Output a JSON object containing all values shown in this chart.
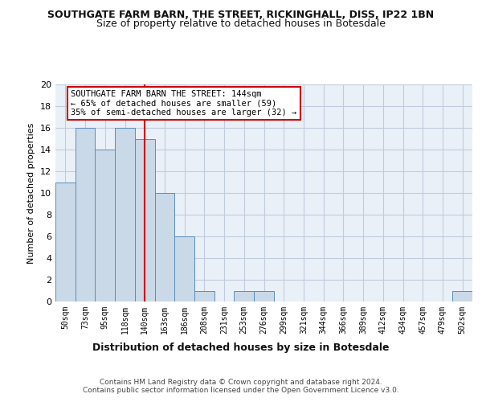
{
  "title": "SOUTHGATE FARM BARN, THE STREET, RICKINGHALL, DISS, IP22 1BN",
  "subtitle": "Size of property relative to detached houses in Botesdale",
  "xlabel": "Distribution of detached houses by size in Botesdale",
  "ylabel": "Number of detached properties",
  "bar_labels": [
    "50sqm",
    "73sqm",
    "95sqm",
    "118sqm",
    "140sqm",
    "163sqm",
    "186sqm",
    "208sqm",
    "231sqm",
    "253sqm",
    "276sqm",
    "299sqm",
    "321sqm",
    "344sqm",
    "366sqm",
    "389sqm",
    "412sqm",
    "434sqm",
    "457sqm",
    "479sqm",
    "502sqm"
  ],
  "bar_values": [
    11,
    16,
    14,
    16,
    15,
    10,
    6,
    1,
    0,
    1,
    1,
    0,
    0,
    0,
    0,
    0,
    0,
    0,
    0,
    0,
    1
  ],
  "bar_color": "#c9d9e8",
  "bar_edge_color": "#5b8db8",
  "ylim": [
    0,
    20
  ],
  "yticks": [
    0,
    2,
    4,
    6,
    8,
    10,
    12,
    14,
    16,
    18,
    20
  ],
  "subject_line_color": "#cc0000",
  "annotation_text": "SOUTHGATE FARM BARN THE STREET: 144sqm\n← 65% of detached houses are smaller (59)\n35% of semi-detached houses are larger (32) →",
  "annotation_box_color": "#cc0000",
  "footer_text": "Contains HM Land Registry data © Crown copyright and database right 2024.\nContains public sector information licensed under the Open Government Licence v3.0.",
  "background_color": "#ffffff",
  "grid_color": "#c0ccdd",
  "ax_facecolor": "#eaf0f8"
}
